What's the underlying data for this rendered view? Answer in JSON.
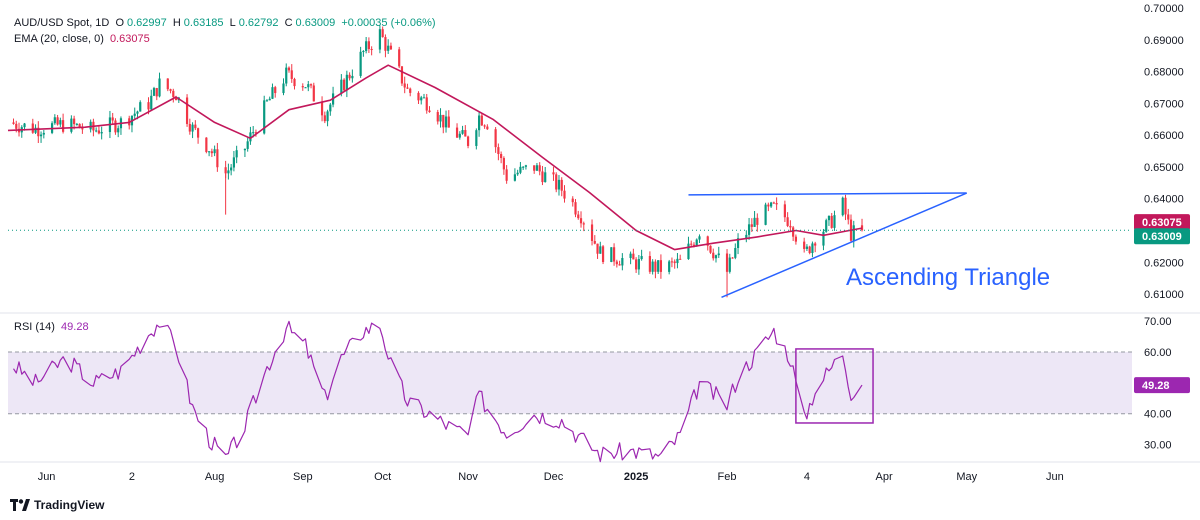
{
  "legend": {
    "symbol": "AUD/USD Spot, 1D",
    "open_label": "O",
    "open": "0.62997",
    "high_label": "H",
    "high": "0.63185",
    "low_label": "L",
    "low": "0.62792",
    "close_label": "C",
    "close": "0.63009",
    "change": "+0.00035 (+0.06%)",
    "ema_label": "EMA (20, close, 0)",
    "ema_value": "0.63075",
    "rsi_label": "RSI (14)",
    "rsi_value": "49.28"
  },
  "branding": {
    "logo_text": "TradingView"
  },
  "colors": {
    "up": "#089981",
    "down": "#f23645",
    "ema": "#c2185b",
    "trendline": "#2962ff",
    "annotation": "#2962ff",
    "rsi_line": "#9c27b0",
    "rsi_band": "#ede7f6",
    "rsi_box": "#9c27b0",
    "price_badge_close": "#089981",
    "price_badge_ema": "#c2185b",
    "rsi_badge": "#9c27b0"
  },
  "chart_data": [
    {
      "type": "candlestick",
      "title": "AUD/USD Spot, 1D",
      "y_ticks": [
        "0.70000",
        "0.69000",
        "0.68000",
        "0.67000",
        "0.66000",
        "0.65000",
        "0.64000",
        "0.63000",
        "0.62000",
        "0.61000"
      ],
      "ylim": [
        0.605,
        0.7
      ],
      "x_ticks": [
        {
          "label": "Jun",
          "date": "2024-06-01"
        },
        {
          "label": "2",
          "date": "2024-07-02"
        },
        {
          "label": "Aug",
          "date": "2024-08-01"
        },
        {
          "label": "Sep",
          "date": "2024-09-02"
        },
        {
          "label": "Oct",
          "date": "2024-10-01"
        },
        {
          "label": "Nov",
          "date": "2024-11-01"
        },
        {
          "label": "Dec",
          "date": "2024-12-02"
        },
        {
          "label": "2025",
          "date": "2025-01-01",
          "bold": true
        },
        {
          "label": "Feb",
          "date": "2025-02-03"
        },
        {
          "label": "4",
          "date": "2025-03-04"
        },
        {
          "label": "Apr",
          "date": "2025-04-01"
        },
        {
          "label": "May",
          "date": "2025-05-01"
        },
        {
          "label": "Jun",
          "date": "2025-06-02"
        }
      ],
      "xlim": [
        "2024-05-18",
        "2025-06-30"
      ],
      "close_series": [
        [
          "2024-05-18",
          0.664
        ],
        [
          "2024-05-28",
          0.662
        ],
        [
          "2024-06-08",
          0.6635
        ],
        [
          "2024-06-18",
          0.6615
        ],
        [
          "2024-06-28",
          0.664
        ],
        [
          "2024-07-08",
          0.67
        ],
        [
          "2024-07-12",
          0.676
        ],
        [
          "2024-07-18",
          0.673
        ],
        [
          "2024-07-24",
          0.662
        ],
        [
          "2024-07-30",
          0.656
        ],
        [
          "2024-08-05",
          0.648
        ],
        [
          "2024-08-12",
          0.656
        ],
        [
          "2024-08-20",
          0.67
        ],
        [
          "2024-08-27",
          0.679
        ],
        [
          "2024-09-03",
          0.676
        ],
        [
          "2024-09-10",
          0.667
        ],
        [
          "2024-09-16",
          0.675
        ],
        [
          "2024-09-24",
          0.686
        ],
        [
          "2024-09-30",
          0.692
        ],
        [
          "2024-10-04",
          0.685
        ],
        [
          "2024-10-10",
          0.674
        ],
        [
          "2024-10-18",
          0.67
        ],
        [
          "2024-10-25",
          0.662
        ],
        [
          "2024-11-01",
          0.658
        ],
        [
          "2024-11-05",
          0.666
        ],
        [
          "2024-11-08",
          0.664
        ],
        [
          "2024-11-15",
          0.647
        ],
        [
          "2024-11-25",
          0.65
        ],
        [
          "2024-12-05",
          0.643
        ],
        [
          "2024-12-12",
          0.635
        ],
        [
          "2024-12-19",
          0.623
        ],
        [
          "2024-12-31",
          0.62
        ],
        [
          "2025-01-10",
          0.618
        ],
        [
          "2025-01-17",
          0.62
        ],
        [
          "2025-01-24",
          0.63
        ],
        [
          "2025-02-03",
          0.617
        ],
        [
          "2025-02-07",
          0.626
        ],
        [
          "2025-02-14",
          0.634
        ],
        [
          "2025-02-20",
          0.637
        ],
        [
          "2025-02-26",
          0.633
        ],
        [
          "2025-03-03",
          0.622
        ],
        [
          "2025-03-07",
          0.628
        ],
        [
          "2025-03-12",
          0.632
        ],
        [
          "2025-03-17",
          0.638
        ],
        [
          "2025-03-20",
          0.629
        ],
        [
          "2025-03-24",
          0.6301
        ]
      ],
      "ema_series": [
        [
          "2024-05-18",
          0.6615
        ],
        [
          "2024-06-15",
          0.6625
        ],
        [
          "2024-07-01",
          0.664
        ],
        [
          "2024-07-18",
          0.672
        ],
        [
          "2024-08-01",
          0.664
        ],
        [
          "2024-08-14",
          0.659
        ],
        [
          "2024-08-28",
          0.668
        ],
        [
          "2024-09-12",
          0.671
        ],
        [
          "2024-09-25",
          0.678
        ],
        [
          "2024-10-03",
          0.682
        ],
        [
          "2024-10-20",
          0.675
        ],
        [
          "2024-11-10",
          0.665
        ],
        [
          "2024-11-28",
          0.653
        ],
        [
          "2024-12-15",
          0.642
        ],
        [
          "2025-01-01",
          0.63
        ],
        [
          "2025-01-15",
          0.624
        ],
        [
          "2025-01-29",
          0.626
        ],
        [
          "2025-02-14",
          0.628
        ],
        [
          "2025-02-28",
          0.63
        ],
        [
          "2025-03-10",
          0.6285
        ],
        [
          "2025-03-24",
          0.63075
        ]
      ],
      "triangle": {
        "resistance": [
          [
            "2025-01-20",
            0.6412
          ],
          [
            "2025-05-01",
            0.6418
          ]
        ],
        "support": [
          [
            "2025-02-01",
            0.609
          ],
          [
            "2025-05-01",
            0.6418
          ]
        ]
      },
      "annotation": "Ascending Triangle",
      "last_price": "0.63009",
      "ema_last": "0.63075",
      "last_price_value": 0.63009,
      "ema_last_value": 0.63075
    },
    {
      "type": "line",
      "title": "RSI (14)",
      "y_ticks": [
        "70.00",
        "60.00",
        "40.00",
        "30.00"
      ],
      "ylim": [
        25,
        72
      ],
      "band": [
        40,
        60
      ],
      "last_value": "49.28",
      "last_value_number": 49.28,
      "box": {
        "x": [
          "2025-02-28",
          "2025-03-28"
        ],
        "y": [
          37,
          61
        ]
      },
      "series": [
        [
          "2024-05-18",
          57
        ],
        [
          "2024-05-28",
          50
        ],
        [
          "2024-06-08",
          58
        ],
        [
          "2024-06-18",
          50
        ],
        [
          "2024-06-28",
          54
        ],
        [
          "2024-07-08",
          66
        ],
        [
          "2024-07-12",
          70
        ],
        [
          "2024-07-18",
          62
        ],
        [
          "2024-07-24",
          42
        ],
        [
          "2024-07-30",
          32
        ],
        [
          "2024-08-05",
          25
        ],
        [
          "2024-08-12",
          36
        ],
        [
          "2024-08-20",
          55
        ],
        [
          "2024-08-27",
          68
        ],
        [
          "2024-09-03",
          62
        ],
        [
          "2024-09-10",
          45
        ],
        [
          "2024-09-16",
          58
        ],
        [
          "2024-09-24",
          67
        ],
        [
          "2024-09-30",
          69
        ],
        [
          "2024-10-04",
          56
        ],
        [
          "2024-10-10",
          44
        ],
        [
          "2024-10-18",
          40
        ],
        [
          "2024-10-25",
          36
        ],
        [
          "2024-11-01",
          33
        ],
        [
          "2024-11-05",
          46
        ],
        [
          "2024-11-08",
          42
        ],
        [
          "2024-11-15",
          34
        ],
        [
          "2024-11-25",
          40
        ],
        [
          "2024-12-05",
          38
        ],
        [
          "2024-12-12",
          32
        ],
        [
          "2024-12-19",
          27
        ],
        [
          "2024-12-31",
          28
        ],
        [
          "2025-01-10",
          26
        ],
        [
          "2025-01-17",
          33
        ],
        [
          "2025-01-24",
          50
        ],
        [
          "2025-02-03",
          43
        ],
        [
          "2025-02-07",
          52
        ],
        [
          "2025-02-14",
          60
        ],
        [
          "2025-02-20",
          67
        ],
        [
          "2025-02-26",
          58
        ],
        [
          "2025-03-03",
          38
        ],
        [
          "2025-03-07",
          48
        ],
        [
          "2025-03-12",
          54
        ],
        [
          "2025-03-17",
          60
        ],
        [
          "2025-03-20",
          47
        ],
        [
          "2025-03-24",
          49.28
        ]
      ]
    }
  ]
}
